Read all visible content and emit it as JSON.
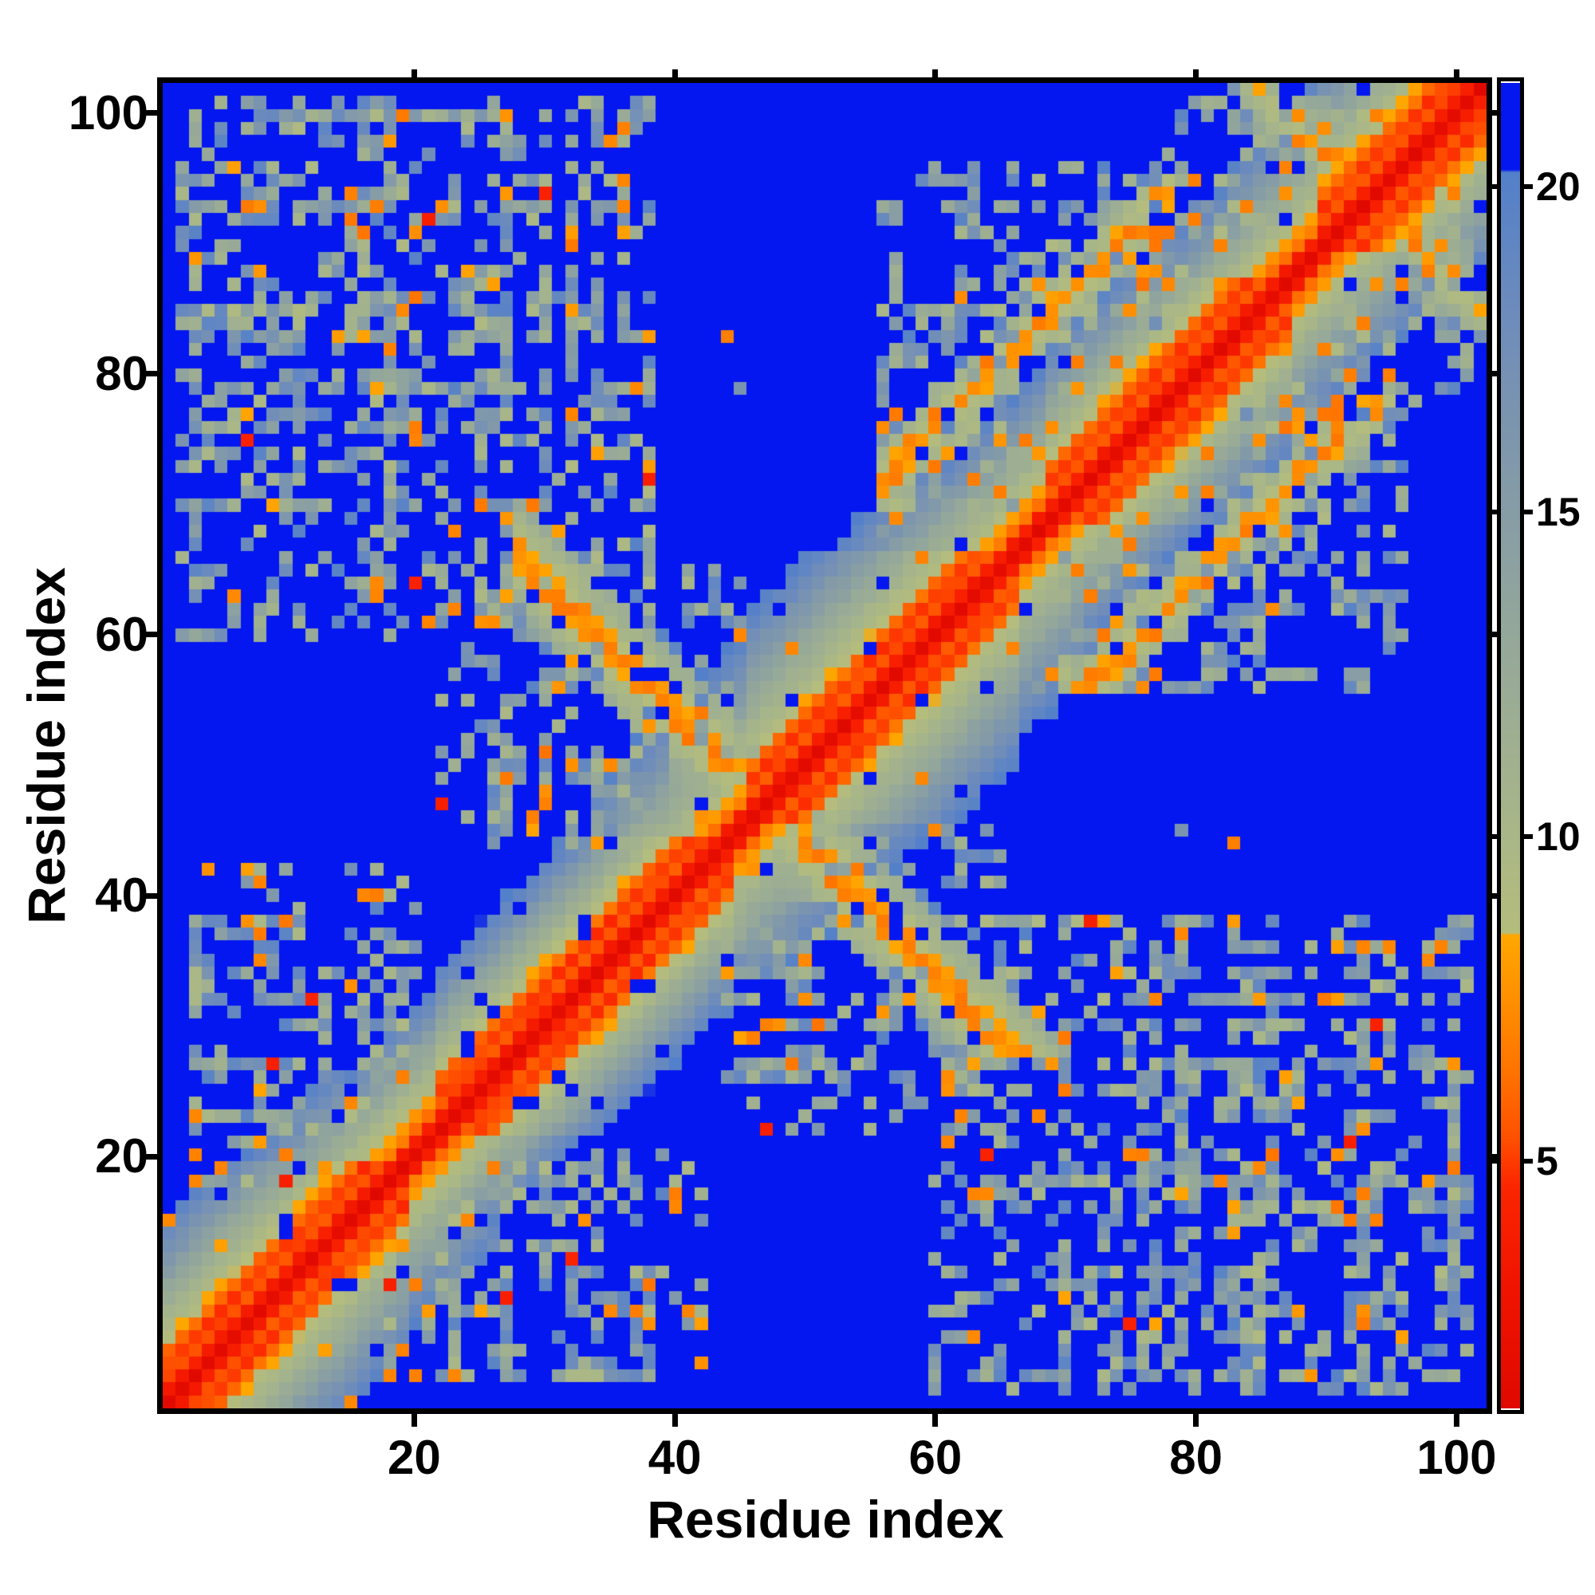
{
  "figure": {
    "background": "#ffffff",
    "xlabel": "Residue index",
    "ylabel": "Residue index",
    "x_tick_labels": [
      "20",
      "40",
      "60",
      "80",
      "100"
    ],
    "y_tick_labels": [
      "20",
      "40",
      "60",
      "80",
      "100"
    ],
    "colorbar_tick_labels": [
      "5",
      "10",
      "15",
      "20"
    ]
  },
  "chart_data": {
    "type": "heatmap",
    "title": "",
    "xlabel": "Residue index",
    "ylabel": "Residue index",
    "n": 102,
    "x_range": [
      0.7,
      102.3
    ],
    "y_range": [
      0.7,
      102.3
    ],
    "x_ticks": [
      20,
      40,
      60,
      80,
      100
    ],
    "y_ticks": [
      20,
      40,
      60,
      80,
      100
    ],
    "grid": false,
    "legend": "none",
    "colorbar": {
      "position": "right",
      "ticks": [
        5,
        10,
        15,
        20
      ],
      "vmin": 1.2,
      "vmax": 21.6
    },
    "colormap_stops": [
      [
        1.2,
        "#e00900"
      ],
      [
        3.0,
        "#f01300"
      ],
      [
        4.6,
        "#fb2500"
      ],
      [
        5.4,
        "#ff5200"
      ],
      [
        6.4,
        "#ff7400"
      ],
      [
        7.4,
        "#ff8d00"
      ],
      [
        8.48,
        "#ffa700"
      ],
      [
        8.52,
        "#b5bd7c"
      ],
      [
        10.5,
        "#a5b48b"
      ],
      [
        13.0,
        "#95a89a"
      ],
      [
        15.5,
        "#839aa8"
      ],
      [
        18.0,
        "#6e8cbb"
      ],
      [
        20.23,
        "#5380ca"
      ],
      [
        20.27,
        "#0417f0"
      ],
      [
        21.6,
        "#0417f0"
      ]
    ],
    "matrix_model": {
      "description": "symmetric residue-residue distance matrix, distances capped near 21.6; red diagonal core, orange/red helical zigzag near diagonal, sage/steel contact patches, saturated blue for far pairs",
      "seed": 1337,
      "far_value": 25,
      "diagonal_value": 1.5,
      "adjacent_value": 3.8,
      "helices": [
        [
          1,
          19
        ],
        [
          22,
          44
        ],
        [
          46,
          66
        ],
        [
          69,
          87
        ],
        [
          90,
          102
        ]
      ],
      "helix_profile": [
        5.4,
        5.0,
        6.2,
        8.6
      ],
      "loop_profile": [
        6.5,
        7.9,
        9.3,
        10.2
      ],
      "band_segments": [
        [
          1,
          20,
          1.2
        ],
        [
          20,
          40,
          1.5
        ],
        [
          40,
          66,
          1.02
        ],
        [
          66,
          88,
          1.32
        ],
        [
          88,
          103,
          1.15
        ]
      ],
      "jitter": 0.8,
      "hole_probability": 0.05,
      "wing_orange_probability": 0.025,
      "global_speckle_probability": 0.004,
      "global_orange_probability": 0.0015,
      "row_bias": {
        "min": 0.5,
        "spread": 1.1,
        "power": 2
      },
      "patches": [
        {
          "i": [
            2,
            38
          ],
          "j": [
            60,
            101
          ],
          "density": 0.62,
          "p_orange": 0.07,
          "p_red": 0.01
        },
        {
          "i": [
            22,
            45
          ],
          "j": [
            44,
            66
          ],
          "density": 0.66,
          "p_orange": 0.07,
          "p_red": 0.012
        },
        {
          "i": [
            56,
            78
          ],
          "j": [
            60,
            96
          ],
          "density": 0.6,
          "p_orange": 0.07,
          "p_red": 0.008
        },
        {
          "i": [
            3,
            20
          ],
          "j": [
            18,
            42
          ],
          "density": 0.6,
          "p_orange": 0.08,
          "p_red": 0.012
        },
        {
          "i": [
            78,
            100
          ],
          "j": [
            82,
            102
          ],
          "density": 0.5,
          "p_orange": 0.06,
          "p_red": 0.008
        }
      ],
      "anti_bands": [
        {
          "sum": 94,
          "i": [
            28,
            66
          ],
          "halfwidth": 4,
          "base": 7.0,
          "slope": 1.3,
          "skip": 0.18,
          "orange_core": 0.3
        },
        {
          "sum": 187,
          "i": [
            84,
            100
          ],
          "halfwidth": 3,
          "base": 8.6,
          "slope": 1.3,
          "skip": 0.3,
          "orange_core": 0.15
        }
      ],
      "parallel_bands": [
        {
          "offset": 16,
          "i": [
            56,
            78
          ],
          "halfwidth": 2,
          "base": 7.4,
          "slope": 1.5,
          "skip": 0.2,
          "orange_core": 0.25
        }
      ]
    }
  }
}
